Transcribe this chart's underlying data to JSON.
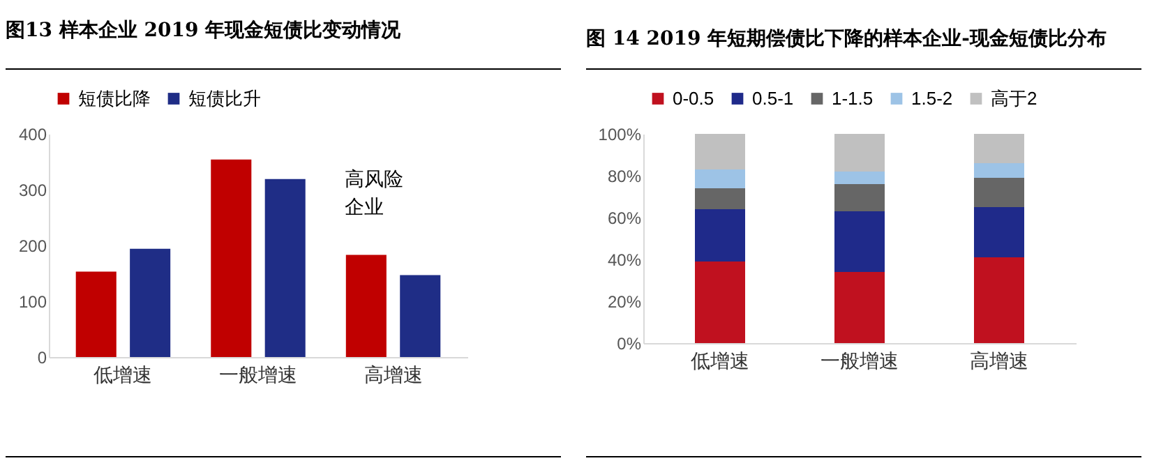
{
  "chart_data": [
    {
      "type": "bar",
      "title": "图13 样本企业 2019 年现金短债比变动情况",
      "categories": [
        "低增速",
        "一般增速",
        "高增速"
      ],
      "series": [
        {
          "name": "短债比降",
          "color": "#c00000",
          "values": [
            153,
            354,
            183
          ]
        },
        {
          "name": "短债比升",
          "color": "#1f2d86",
          "values": [
            194,
            319,
            147
          ]
        }
      ],
      "ylim": [
        0,
        400
      ],
      "yticks": [
        0,
        100,
        200,
        300,
        400
      ],
      "legend": "top",
      "annotations": [
        "高风险企业"
      ]
    },
    {
      "type": "bar",
      "title": "图 14   2019 年短期偿债比下降的样本企业-现金短债比分布",
      "categories": [
        "低增速",
        "一般增速",
        "高增速"
      ],
      "stacked": true,
      "series": [
        {
          "name": "0-0.5",
          "color": "#c0111f",
          "values": [
            39,
            34,
            41
          ]
        },
        {
          "name": "0.5-1",
          "color": "#1f2a8a",
          "values": [
            25,
            29,
            24
          ]
        },
        {
          "name": "1-1.5",
          "color": "#666666",
          "values": [
            10,
            13,
            14
          ]
        },
        {
          "name": "1.5-2",
          "color": "#9dc3e6",
          "values": [
            9,
            6,
            7
          ]
        },
        {
          "name": "高于2",
          "color": "#c0c0c0",
          "values": [
            17,
            18,
            14
          ]
        }
      ],
      "ylim": [
        0,
        100
      ],
      "yticks": [
        {
          "value": 0,
          "label": "0%"
        },
        {
          "value": 20,
          "label": "20%"
        },
        {
          "value": 40,
          "label": "40%"
        },
        {
          "value": 60,
          "label": "60%"
        },
        {
          "value": 80,
          "label": "80%"
        },
        {
          "value": 100,
          "label": "100%"
        }
      ],
      "legend": "top"
    }
  ]
}
